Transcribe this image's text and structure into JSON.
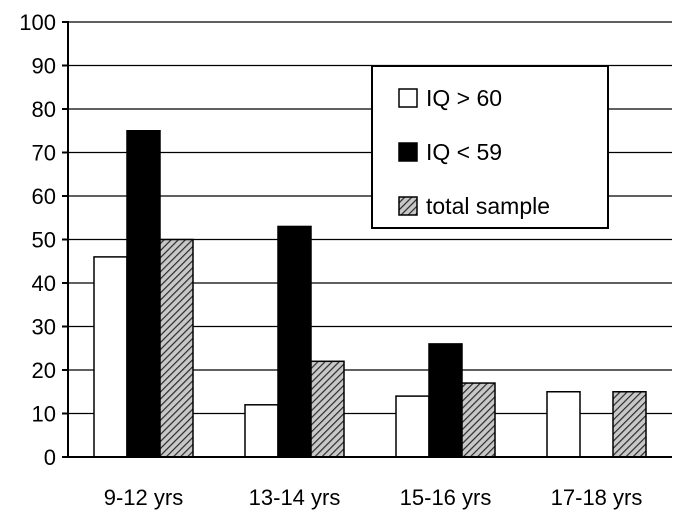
{
  "chart_data": {
    "type": "bar",
    "title": "",
    "xlabel": "",
    "ylabel": "",
    "ylim": [
      0,
      100
    ],
    "yticks": [
      0,
      10,
      20,
      30,
      40,
      50,
      60,
      70,
      80,
      90,
      100
    ],
    "grid": true,
    "legend_position": "top-right",
    "categories": [
      "9-12 yrs",
      "13-14 yrs",
      "15-16 yrs",
      "17-18 yrs"
    ],
    "series": [
      {
        "name": "IQ > 60",
        "fill": "white",
        "values": [
          46,
          12,
          14,
          15
        ]
      },
      {
        "name": "IQ < 59",
        "fill": "black",
        "values": [
          75,
          53,
          26,
          0
        ]
      },
      {
        "name": "total sample",
        "fill": "hatched",
        "values": [
          50,
          22,
          17,
          15
        ]
      }
    ]
  },
  "colors": {
    "series_white": "#ffffff",
    "series_black": "#000000",
    "hatch_background": "#c8c8c8",
    "hatch_line": "#2a2a2a"
  }
}
